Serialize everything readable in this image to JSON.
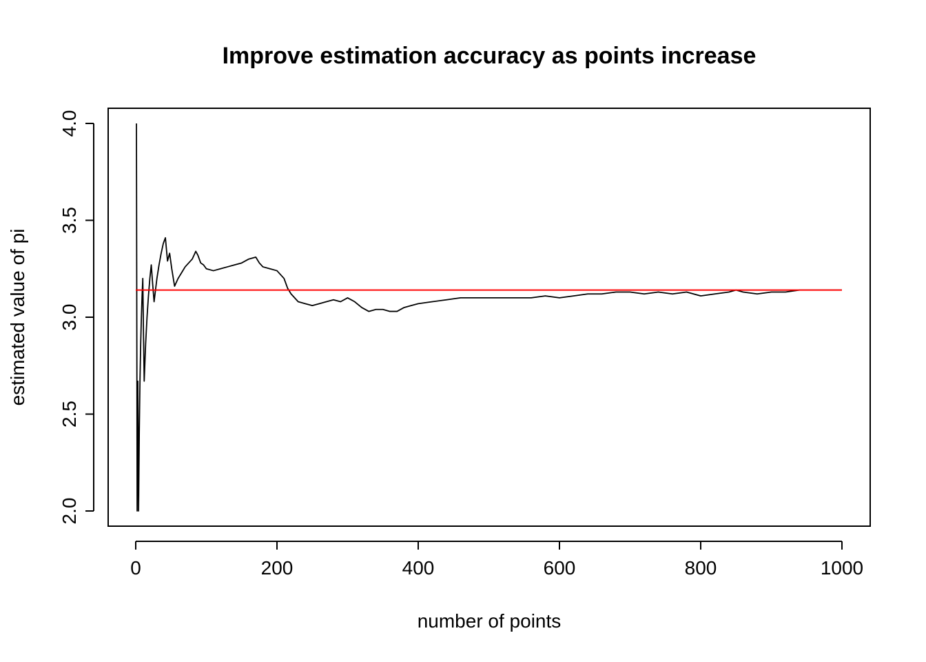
{
  "chart_data": {
    "type": "line",
    "title": "Improve estimation accuracy as points increase",
    "xlabel": "number of points",
    "ylabel": "estimated value of pi",
    "xlim": [
      0,
      1000
    ],
    "ylim": [
      2.0,
      4.0
    ],
    "x_ticks": [
      0,
      200,
      400,
      600,
      800,
      1000
    ],
    "x_tick_labels": [
      "0",
      "200",
      "400",
      "600",
      "800",
      "1000"
    ],
    "y_ticks": [
      2.0,
      2.5,
      3.0,
      3.5,
      4.0
    ],
    "y_tick_labels": [
      "2.0",
      "2.5",
      "3.0",
      "3.5",
      "4.0"
    ],
    "grid": false,
    "legend": "none",
    "series": [
      {
        "color": "#000000",
        "x": [
          1,
          2,
          3,
          4,
          5,
          6,
          7,
          8,
          9,
          10,
          11,
          12,
          14,
          16,
          18,
          20,
          22,
          24,
          26,
          28,
          30,
          33,
          36,
          39,
          42,
          45,
          48,
          51,
          55,
          60,
          65,
          70,
          75,
          80,
          85,
          88,
          92,
          96,
          100,
          110,
          120,
          130,
          140,
          150,
          160,
          170,
          175,
          180,
          190,
          200,
          210,
          215,
          220,
          230,
          240,
          250,
          260,
          270,
          280,
          290,
          300,
          310,
          320,
          330,
          340,
          350,
          360,
          370,
          380,
          390,
          400,
          420,
          440,
          460,
          480,
          500,
          520,
          540,
          560,
          580,
          600,
          620,
          640,
          660,
          680,
          700,
          720,
          740,
          760,
          780,
          800,
          820,
          840,
          850,
          860,
          880,
          900,
          920,
          940,
          960,
          980,
          1000
        ],
        "values": [
          4.0,
          2.0,
          2.67,
          2.0,
          2.4,
          2.67,
          2.86,
          3.0,
          3.11,
          3.2,
          2.91,
          2.67,
          2.86,
          3.0,
          3.11,
          3.2,
          3.27,
          3.17,
          3.08,
          3.14,
          3.2,
          3.27,
          3.33,
          3.38,
          3.41,
          3.29,
          3.33,
          3.25,
          3.16,
          3.2,
          3.23,
          3.26,
          3.28,
          3.3,
          3.34,
          3.32,
          3.28,
          3.27,
          3.25,
          3.24,
          3.25,
          3.26,
          3.27,
          3.28,
          3.3,
          3.31,
          3.28,
          3.26,
          3.25,
          3.24,
          3.2,
          3.15,
          3.12,
          3.08,
          3.07,
          3.06,
          3.07,
          3.08,
          3.09,
          3.08,
          3.1,
          3.08,
          3.05,
          3.03,
          3.04,
          3.04,
          3.03,
          3.03,
          3.05,
          3.06,
          3.07,
          3.08,
          3.09,
          3.1,
          3.1,
          3.1,
          3.1,
          3.1,
          3.1,
          3.11,
          3.1,
          3.11,
          3.12,
          3.12,
          3.13,
          3.13,
          3.12,
          3.13,
          3.12,
          3.13,
          3.11,
          3.12,
          3.13,
          3.14,
          3.13,
          3.12,
          3.13,
          3.13,
          3.14,
          3.14,
          3.14,
          3.14
        ]
      },
      {
        "color": "#ff0000",
        "x": [
          0,
          1000
        ],
        "values": [
          3.14,
          3.14
        ]
      }
    ]
  }
}
